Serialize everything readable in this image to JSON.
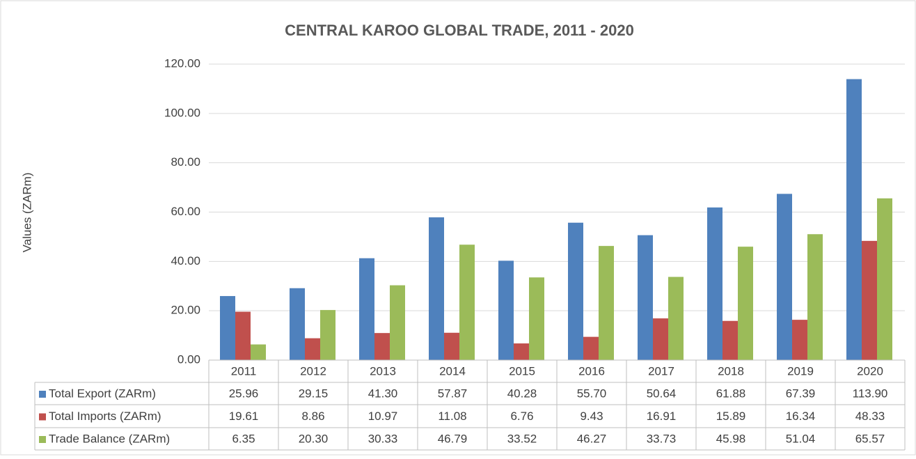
{
  "chart_data": {
    "type": "bar",
    "title": "CENTRAL KAROO GLOBAL TRADE, 2011 - 2020",
    "y_label": "Values (ZARm)",
    "categories": [
      "2011",
      "2012",
      "2013",
      "2014",
      "2015",
      "2016",
      "2017",
      "2018",
      "2019",
      "2020"
    ],
    "series": [
      {
        "name": "Total Export (ZARm)",
        "color": "#4f81bd",
        "values": [
          25.96,
          29.15,
          41.3,
          57.87,
          40.28,
          55.7,
          50.64,
          61.88,
          67.39,
          113.9
        ],
        "value_labels": [
          "25.96",
          "29.15",
          "41.30",
          "57.87",
          "40.28",
          "55.70",
          "50.64",
          "61.88",
          "67.39",
          "113.90"
        ]
      },
      {
        "name": "Total Imports (ZARm)",
        "color": "#c0504d",
        "values": [
          19.61,
          8.86,
          10.97,
          11.08,
          6.76,
          9.43,
          16.91,
          15.89,
          16.34,
          48.33
        ],
        "value_labels": [
          "19.61",
          "8.86",
          "10.97",
          "11.08",
          "6.76",
          "9.43",
          "16.91",
          "15.89",
          "16.34",
          "48.33"
        ]
      },
      {
        "name": "Trade Balance (ZARm)",
        "color": "#9bbb59",
        "values": [
          6.35,
          20.3,
          30.33,
          46.79,
          33.52,
          46.27,
          33.73,
          45.98,
          51.04,
          65.57
        ],
        "value_labels": [
          "6.35",
          "20.30",
          "30.33",
          "46.79",
          "33.52",
          "46.27",
          "33.73",
          "45.98",
          "51.04",
          "65.57"
        ]
      }
    ],
    "ylim": [
      0,
      120
    ],
    "yticks": [
      {
        "value": 0,
        "label": "0.00"
      },
      {
        "value": 20,
        "label": "20.00"
      },
      {
        "value": 40,
        "label": "40.00"
      },
      {
        "value": 60,
        "label": "60.00"
      },
      {
        "value": 80,
        "label": "80.00"
      },
      {
        "value": 100,
        "label": "100.00"
      },
      {
        "value": 120,
        "label": "120.00"
      }
    ],
    "grid": true
  }
}
